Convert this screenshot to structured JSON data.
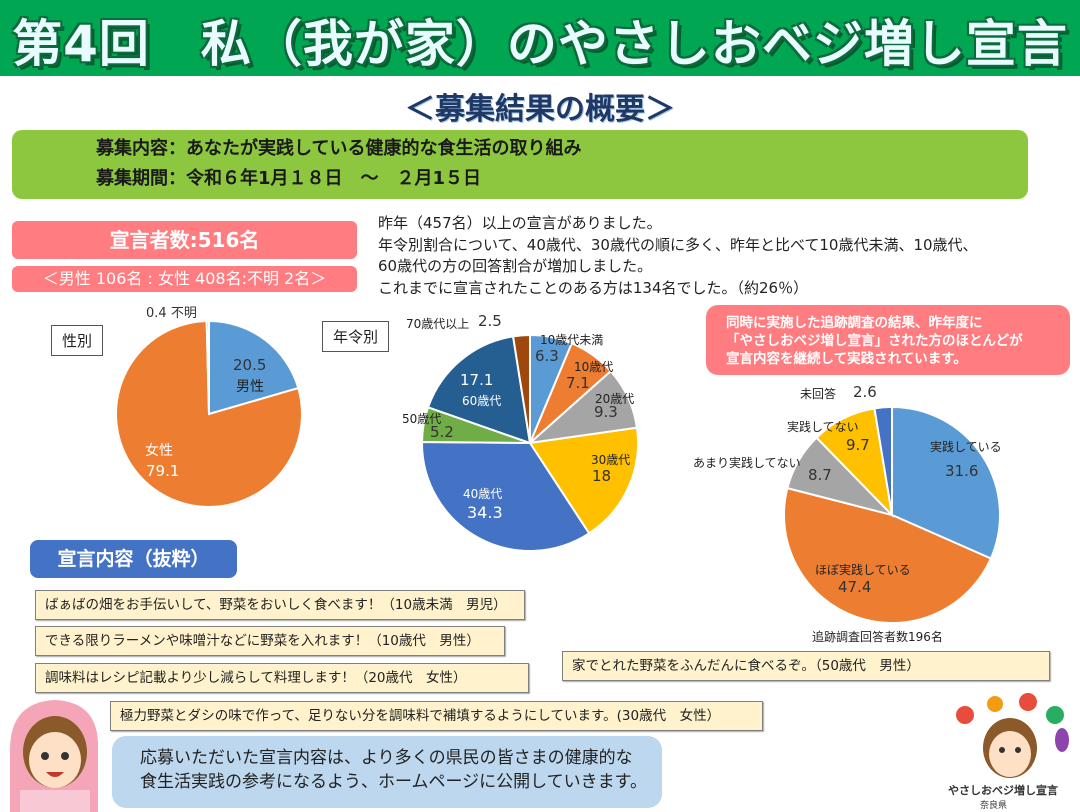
{
  "header": {
    "title": "第4回　私（我が家）のやさしおベジ増し宣言",
    "subtitle": "＜募集結果の概要＞"
  },
  "recruit": {
    "content": "募集内容：あなたが実践している健康的な食生活の取り組み",
    "period": "募集期間：令和６年1月１８日　～　２月1５日"
  },
  "count": {
    "total": "宣言者数:516名",
    "breakdown": "＜男性 106名 : 女性 408名:不明 2名＞"
  },
  "summary": [
    "昨年（457名）以上の宣言がありました。",
    "年令別割合について、40歳代、30歳代の順に多く、昨年と比べて10歳代未満、10歳代、",
    "60歳代の方の回答割合が増加しました。",
    "これまでに宣言されたことのある方は134名でした。（約26％）"
  ],
  "followup_note": [
    "同時に実施した追跡調査の結果、昨年度に",
    "「やさしおベジ増し宣言」された方のほとんどが",
    "宣言内容を継続して実践されています。"
  ],
  "chart_data": [
    {
      "type": "pie",
      "title": "性別",
      "labels": [
        "男性",
        "女性",
        "不明"
      ],
      "values": [
        20.5,
        79.1,
        0.4
      ],
      "colors": [
        "#5b9bd5",
        "#ed7d31",
        "#a5a5a5"
      ]
    },
    {
      "type": "pie",
      "title": "年令別",
      "labels": [
        "10歳代未満",
        "10歳代",
        "20歳代",
        "30歳代",
        "40歳代",
        "50歳代",
        "60歳代",
        "70歳代以上"
      ],
      "values": [
        6.3,
        7.1,
        9.3,
        18.0,
        34.3,
        5.2,
        17.1,
        2.5
      ],
      "colors": [
        "#5b9bd5",
        "#ed7d31",
        "#a5a5a5",
        "#ffc000",
        "#4472c4",
        "#70ad47",
        "#255e91",
        "#9e480e"
      ]
    },
    {
      "type": "pie",
      "title": "追跡調査回答者数196名",
      "labels": [
        "実践している",
        "ほぼ実践している",
        "あまり実践してない",
        "実践してない",
        "未回答"
      ],
      "values": [
        31.6,
        47.4,
        8.7,
        9.7,
        2.6
      ],
      "colors": [
        "#5b9bd5",
        "#ed7d31",
        "#a5a5a5",
        "#ffc000",
        "#4472c4"
      ]
    }
  ],
  "declarations": {
    "heading": "宣言内容（抜粋）",
    "items": [
      "ばぁばの畑をお手伝いして、野菜をおいしく食べます！（10歳未満　男児）",
      "できる限りラーメンや味噌汁などに野菜を入れます！（10歳代　男性）",
      "調味料はレシピ記載より少し減らして料理します！（20歳代　女性）",
      "極力野菜とダシの味で作って、足りない分を調味料で補填するようにしています。(30歳代　女性）",
      "家でとれた野菜をふんだんに食べるぞ。（50歳代　男性）"
    ]
  },
  "bubble": [
    "応募いただいた宣言内容は、より多くの県民の皆さまの健康的な",
    "食生活実践の参考になるよう、ホームページに公開していきます。"
  ],
  "logo": {
    "name": "やさしおベジ増し宣言",
    "pref": "奈良県"
  }
}
